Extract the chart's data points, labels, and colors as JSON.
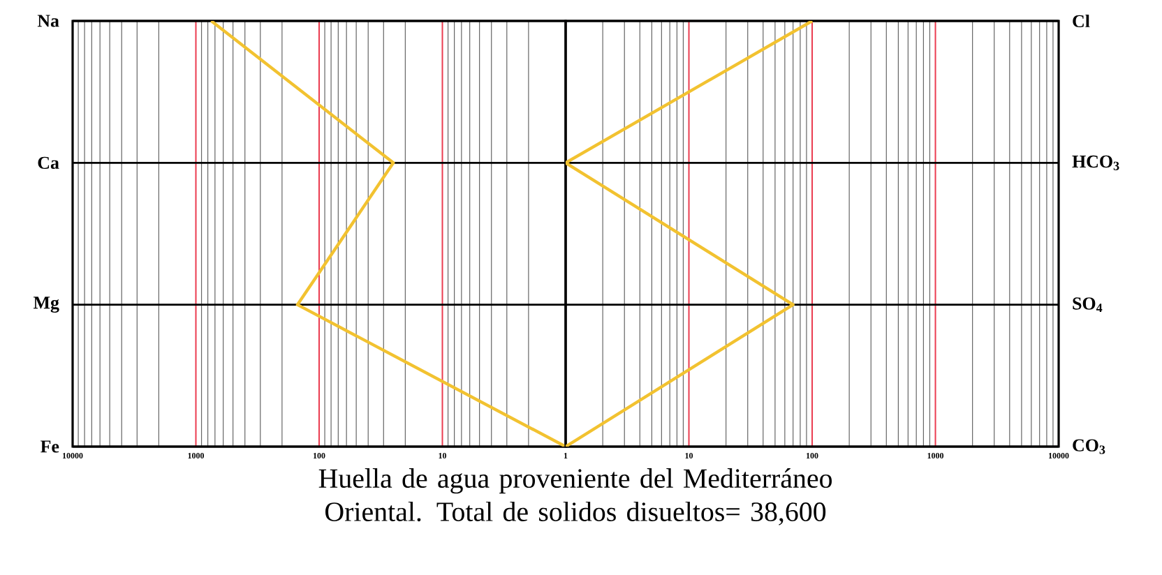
{
  "chart_data": [
    {
      "type": "line",
      "orientation": "horizontal",
      "log": "x",
      "grid": true,
      "marker": "none",
      "categories": [
        "Na",
        "Ca",
        "Mg",
        "Fe"
      ],
      "series": [
        {
          "color": "#f2c230",
          "values": [
            750,
            25,
            150,
            1
          ]
        }
      ],
      "xlim": [
        10000,
        1
      ],
      "xticks": [
        10000,
        1000,
        100,
        10,
        1
      ],
      "annotations": [
        "Huella de agua proveniente del Mediterráneo Oriental. Total de solidos disueltos= 38,600"
      ]
    },
    {
      "type": "line",
      "orientation": "horizontal",
      "log": "x",
      "grid": true,
      "marker": "none",
      "categories": [
        "Cl",
        "HCO$_{3}$",
        "SO$_{4}$",
        "CO$_{3}$"
      ],
      "series": [
        {
          "color": "#f2c230",
          "values": [
            100,
            1,
            70,
            1
          ]
        }
      ],
      "xlim": [
        1,
        10000
      ],
      "xticks": [
        {
          "value": 1,
          "label": null
        },
        10,
        100,
        1000,
        10000
      ]
    }
  ]
}
